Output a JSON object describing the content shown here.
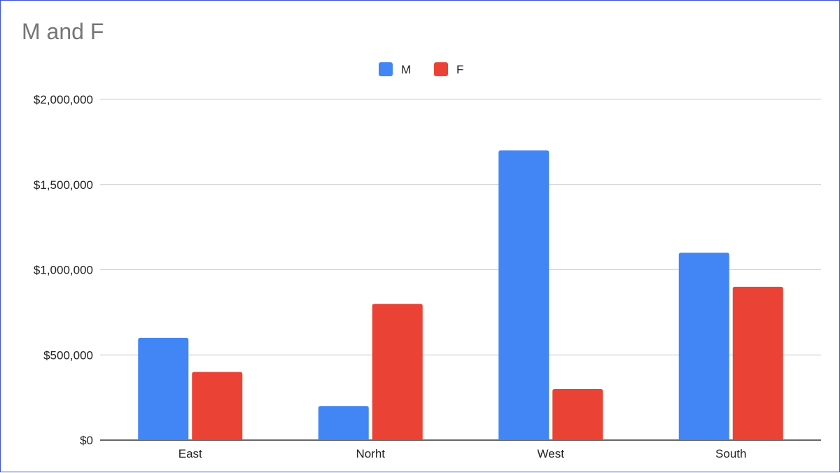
{
  "chart_data": {
    "type": "bar",
    "title": "M and F",
    "categories": [
      "East",
      "Norht",
      "West",
      "South"
    ],
    "series": [
      {
        "name": "M",
        "color": "#4285f4",
        "values": [
          600000,
          200000,
          1700000,
          1100000
        ]
      },
      {
        "name": "F",
        "color": "#ea4335",
        "values": [
          400000,
          800000,
          300000,
          900000
        ]
      }
    ],
    "ylim": [
      0,
      2000000
    ],
    "yticks": [
      0,
      500000,
      1000000,
      1500000,
      2000000
    ],
    "ytick_labels": [
      "$0",
      "$500,000",
      "$1,000,000",
      "$1,500,000",
      "$2,000,000"
    ],
    "xlabel": "",
    "ylabel": "",
    "grid": true,
    "legend_position": "top-center"
  }
}
